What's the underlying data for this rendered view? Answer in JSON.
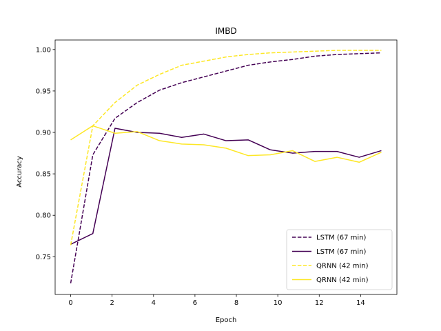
{
  "chart_data": {
    "type": "line",
    "title": "IMBD",
    "xlabel": "Epoch",
    "ylabel": "Accuracy",
    "xlim": [
      -0.75,
      15.75
    ],
    "ylim": [
      0.7045,
      1.0115
    ],
    "xticks": [
      0,
      2,
      4,
      6,
      8,
      10,
      12,
      14
    ],
    "yticks": [
      0.75,
      0.8,
      0.85,
      0.9,
      0.95,
      1.0
    ],
    "xtick_labels": [
      "0",
      "2",
      "4",
      "6",
      "8",
      "10",
      "12",
      "14"
    ],
    "ytick_labels": [
      "0.75",
      "0.80",
      "0.85",
      "0.90",
      "0.95",
      "1.00"
    ],
    "x": [
      0,
      1.07,
      2.14,
      3.21,
      4.29,
      5.36,
      6.43,
      7.5,
      8.57,
      9.64,
      10.71,
      11.79,
      12.86,
      13.93,
      15
    ],
    "legend_position": "lower right",
    "series": [
      {
        "name": "LSTM (67 min)",
        "color": "#440154",
        "style": "dashed",
        "values": [
          0.718,
          0.873,
          0.917,
          0.936,
          0.951,
          0.96,
          0.967,
          0.974,
          0.981,
          0.985,
          0.988,
          0.992,
          0.994,
          0.995,
          0.996
        ]
      },
      {
        "name": "LSTM (67 min)",
        "color": "#440154",
        "style": "solid",
        "values": [
          0.765,
          0.778,
          0.905,
          0.9,
          0.899,
          0.894,
          0.898,
          0.89,
          0.891,
          0.879,
          0.875,
          0.877,
          0.877,
          0.87,
          0.878
        ]
      },
      {
        "name": "QRNN (42 min)",
        "color": "#fde725",
        "style": "dashed",
        "values": [
          0.764,
          0.908,
          0.936,
          0.957,
          0.97,
          0.981,
          0.986,
          0.991,
          0.994,
          0.996,
          0.997,
          0.998,
          0.999,
          0.999,
          0.999
        ]
      },
      {
        "name": "QRNN (42 min)",
        "color": "#fde725",
        "style": "solid",
        "values": [
          0.891,
          0.908,
          0.899,
          0.901,
          0.89,
          0.886,
          0.885,
          0.881,
          0.872,
          0.873,
          0.878,
          0.865,
          0.87,
          0.864,
          0.876
        ]
      }
    ]
  }
}
